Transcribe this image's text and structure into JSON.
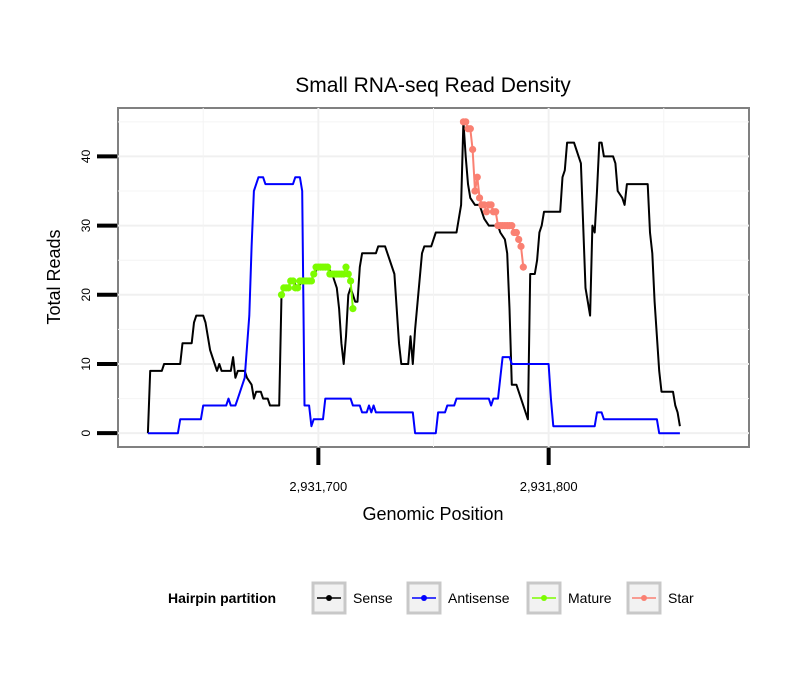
{
  "chart_data": {
    "type": "line",
    "title": "Small RNA-seq Read Density",
    "xlabel": "Genomic Position",
    "ylabel": "Total Reads",
    "xlim": [
      2931613,
      2931887
    ],
    "ylim": [
      -2,
      47
    ],
    "x_ticks": [
      2931700,
      2931800
    ],
    "x_tick_labels": [
      "2,931,700",
      "2,931,800"
    ],
    "y_ticks": [
      0,
      10,
      20,
      30,
      40
    ],
    "y_tick_labels": [
      "0",
      "10",
      "20",
      "30",
      "40"
    ],
    "grid": true,
    "legend": {
      "title": "Hairpin partition",
      "position": "bottom",
      "entries": [
        {
          "label": "Sense",
          "color": "#000000"
        },
        {
          "label": "Antisense",
          "color": "#0000ff"
        },
        {
          "label": "Mature",
          "color": "#7cfc00"
        },
        {
          "label": "Star",
          "color": "#fa8072"
        }
      ]
    },
    "series": [
      {
        "name": "Sense",
        "color": "#000000",
        "markers": false,
        "points": [
          [
            2931626,
            0
          ],
          [
            2931627,
            9
          ],
          [
            2931632,
            9
          ],
          [
            2931633,
            10
          ],
          [
            2931640,
            10
          ],
          [
            2931641,
            13
          ],
          [
            2931645,
            13
          ],
          [
            2931646,
            16
          ],
          [
            2931647,
            17
          ],
          [
            2931650,
            17
          ],
          [
            2931651,
            16
          ],
          [
            2931653,
            12
          ],
          [
            2931655,
            10
          ],
          [
            2931656,
            9
          ],
          [
            2931657,
            10
          ],
          [
            2931658,
            9
          ],
          [
            2931662,
            9
          ],
          [
            2931663,
            11
          ],
          [
            2931664,
            8
          ],
          [
            2931665,
            9
          ],
          [
            2931668,
            9
          ],
          [
            2931669,
            8
          ],
          [
            2931671,
            7
          ],
          [
            2931672,
            5
          ],
          [
            2931673,
            6
          ],
          [
            2931675,
            6
          ],
          [
            2931676,
            5
          ],
          [
            2931678,
            5
          ],
          [
            2931679,
            4
          ],
          [
            2931683,
            4
          ],
          [
            2931684,
            20
          ],
          [
            2931685,
            21
          ],
          [
            2931687,
            21
          ],
          [
            2931688,
            22
          ],
          [
            2931689,
            22
          ],
          [
            2931691,
            21
          ],
          [
            2931693,
            22
          ],
          [
            2931697,
            22
          ],
          [
            2931698,
            23
          ],
          [
            2931700,
            24
          ],
          [
            2931704,
            24
          ],
          [
            2931706,
            23
          ],
          [
            2931707,
            22
          ],
          [
            2931708,
            21
          ],
          [
            2931709,
            18
          ],
          [
            2931710,
            13
          ],
          [
            2931711,
            10
          ],
          [
            2931712,
            14
          ],
          [
            2931713,
            20
          ],
          [
            2931714,
            21
          ],
          [
            2931716,
            19
          ],
          [
            2931717,
            19
          ],
          [
            2931718,
            24
          ],
          [
            2931719,
            26
          ],
          [
            2931725,
            26
          ],
          [
            2931726,
            27
          ],
          [
            2931729,
            27
          ],
          [
            2931733,
            23
          ],
          [
            2931735,
            13
          ],
          [
            2931736,
            10
          ],
          [
            2931739,
            10
          ],
          [
            2931740,
            14
          ],
          [
            2931741,
            10
          ],
          [
            2931742,
            15
          ],
          [
            2931745,
            26
          ],
          [
            2931746,
            27
          ],
          [
            2931749,
            27
          ],
          [
            2931750,
            28
          ],
          [
            2931751,
            29
          ],
          [
            2931760,
            29
          ],
          [
            2931762,
            33
          ],
          [
            2931763,
            45
          ],
          [
            2931764,
            40
          ],
          [
            2931765,
            36
          ],
          [
            2931766,
            34
          ],
          [
            2931768,
            33
          ],
          [
            2931770,
            33
          ],
          [
            2931771,
            32
          ],
          [
            2931772,
            31
          ],
          [
            2931774,
            30
          ],
          [
            2931778,
            30
          ],
          [
            2931779,
            29
          ],
          [
            2931781,
            28
          ],
          [
            2931782,
            26
          ],
          [
            2931783,
            18
          ],
          [
            2931784,
            7
          ],
          [
            2931786,
            7
          ],
          [
            2931790,
            3
          ],
          [
            2931791,
            2
          ],
          [
            2931792,
            23
          ],
          [
            2931794,
            23
          ],
          [
            2931795,
            25
          ],
          [
            2931796,
            29
          ],
          [
            2931797,
            30
          ],
          [
            2931798,
            32
          ],
          [
            2931805,
            32
          ],
          [
            2931806,
            37
          ],
          [
            2931807,
            38
          ],
          [
            2931808,
            42
          ],
          [
            2931811,
            42
          ],
          [
            2931812,
            41
          ],
          [
            2931813,
            40
          ],
          [
            2931814,
            39
          ],
          [
            2931816,
            21
          ],
          [
            2931817,
            19
          ],
          [
            2931818,
            17
          ],
          [
            2931819,
            30
          ],
          [
            2931820,
            29
          ],
          [
            2931821,
            35
          ],
          [
            2931822,
            42
          ],
          [
            2931823,
            42
          ],
          [
            2931824,
            40
          ],
          [
            2931828,
            40
          ],
          [
            2931829,
            39
          ],
          [
            2931830,
            35
          ],
          [
            2931832,
            34
          ],
          [
            2931833,
            33
          ],
          [
            2931834,
            36
          ],
          [
            2931843,
            36
          ],
          [
            2931844,
            29
          ],
          [
            2931845,
            26
          ],
          [
            2931846,
            19
          ],
          [
            2931848,
            9
          ],
          [
            2931849,
            6
          ],
          [
            2931854,
            6
          ],
          [
            2931855,
            4
          ],
          [
            2931856,
            3
          ],
          [
            2931857,
            1
          ]
        ]
      },
      {
        "name": "Antisense",
        "color": "#0000ff",
        "markers": false,
        "points": [
          [
            2931626,
            0
          ],
          [
            2931639,
            0
          ],
          [
            2931640,
            2
          ],
          [
            2931649,
            2
          ],
          [
            2931650,
            4
          ],
          [
            2931660,
            4
          ],
          [
            2931661,
            5
          ],
          [
            2931662,
            4
          ],
          [
            2931664,
            4
          ],
          [
            2931665,
            5
          ],
          [
            2931668,
            8
          ],
          [
            2931670,
            17
          ],
          [
            2931671,
            27
          ],
          [
            2931672,
            35
          ],
          [
            2931673,
            36
          ],
          [
            2931674,
            37
          ],
          [
            2931676,
            37
          ],
          [
            2931677,
            36
          ],
          [
            2931689,
            36
          ],
          [
            2931690,
            37
          ],
          [
            2931692,
            37
          ],
          [
            2931693,
            35
          ],
          [
            2931694,
            4
          ],
          [
            2931696,
            4
          ],
          [
            2931697,
            1
          ],
          [
            2931698,
            2
          ],
          [
            2931702,
            2
          ],
          [
            2931703,
            5
          ],
          [
            2931714,
            5
          ],
          [
            2931715,
            4
          ],
          [
            2931718,
            4
          ],
          [
            2931719,
            3
          ],
          [
            2931721,
            3
          ],
          [
            2931722,
            4
          ],
          [
            2931723,
            3
          ],
          [
            2931724,
            4
          ],
          [
            2931725,
            3
          ],
          [
            2931741,
            3
          ],
          [
            2931742,
            0
          ],
          [
            2931751,
            0
          ],
          [
            2931752,
            3
          ],
          [
            2931755,
            3
          ],
          [
            2931756,
            4
          ],
          [
            2931759,
            4
          ],
          [
            2931760,
            5
          ],
          [
            2931774,
            5
          ],
          [
            2931775,
            4
          ],
          [
            2931776,
            5
          ],
          [
            2931778,
            5
          ],
          [
            2931779,
            8
          ],
          [
            2931780,
            11
          ],
          [
            2931783,
            11
          ],
          [
            2931784,
            10
          ],
          [
            2931800,
            10
          ],
          [
            2931801,
            5
          ],
          [
            2931802,
            1
          ],
          [
            2931820,
            1
          ],
          [
            2931821,
            3
          ],
          [
            2931823,
            3
          ],
          [
            2931824,
            2
          ],
          [
            2931847,
            2
          ],
          [
            2931848,
            0
          ],
          [
            2931857,
            0
          ]
        ]
      },
      {
        "name": "Mature",
        "color": "#7cfc00",
        "markers": true,
        "points": [
          [
            2931684,
            20
          ],
          [
            2931685,
            21
          ],
          [
            2931686,
            21
          ],
          [
            2931687,
            21
          ],
          [
            2931688,
            22
          ],
          [
            2931689,
            22
          ],
          [
            2931690,
            21
          ],
          [
            2931691,
            21
          ],
          [
            2931692,
            22
          ],
          [
            2931693,
            22
          ],
          [
            2931694,
            22
          ],
          [
            2931695,
            22
          ],
          [
            2931696,
            22
          ],
          [
            2931697,
            22
          ],
          [
            2931698,
            23
          ],
          [
            2931699,
            24
          ],
          [
            2931700,
            24
          ],
          [
            2931701,
            24
          ],
          [
            2931702,
            24
          ],
          [
            2931703,
            24
          ],
          [
            2931704,
            24
          ],
          [
            2931705,
            23
          ],
          [
            2931706,
            23
          ],
          [
            2931707,
            23
          ],
          [
            2931708,
            23
          ],
          [
            2931709,
            23
          ],
          [
            2931710,
            23
          ],
          [
            2931711,
            23
          ],
          [
            2931712,
            24
          ],
          [
            2931713,
            23
          ],
          [
            2931714,
            22
          ],
          [
            2931715,
            18
          ]
        ]
      },
      {
        "name": "Star",
        "color": "#fa8072",
        "markers": true,
        "points": [
          [
            2931763,
            45
          ],
          [
            2931764,
            45
          ],
          [
            2931765,
            44
          ],
          [
            2931766,
            44
          ],
          [
            2931767,
            41
          ],
          [
            2931768,
            35
          ],
          [
            2931769,
            37
          ],
          [
            2931770,
            34
          ],
          [
            2931771,
            33
          ],
          [
            2931772,
            33
          ],
          [
            2931773,
            32
          ],
          [
            2931774,
            33
          ],
          [
            2931775,
            33
          ],
          [
            2931776,
            32
          ],
          [
            2931777,
            32
          ],
          [
            2931778,
            30
          ],
          [
            2931779,
            30
          ],
          [
            2931780,
            30
          ],
          [
            2931781,
            30
          ],
          [
            2931782,
            30
          ],
          [
            2931783,
            30
          ],
          [
            2931784,
            30
          ],
          [
            2931785,
            29
          ],
          [
            2931786,
            29
          ],
          [
            2931787,
            28
          ],
          [
            2931788,
            27
          ],
          [
            2931789,
            24
          ]
        ]
      }
    ]
  }
}
